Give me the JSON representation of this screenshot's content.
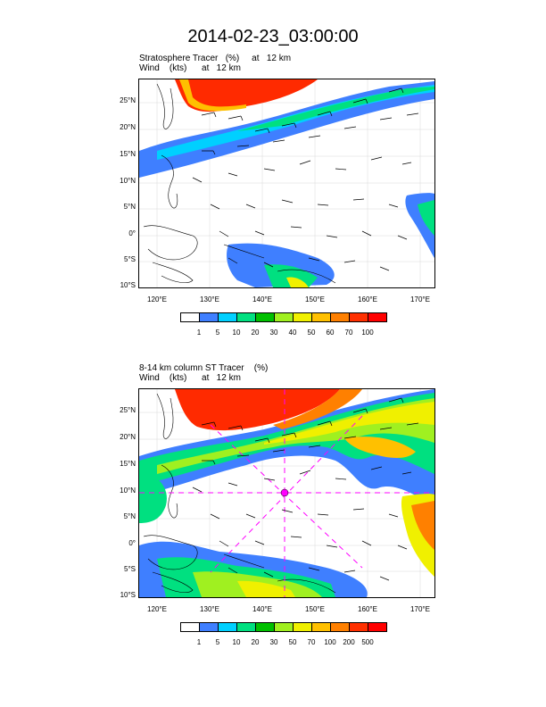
{
  "title": "2014-02-23_03:00:00",
  "panels": [
    {
      "title_line1": "Stratosphere Tracer   (%)     at   12 km",
      "title_line2": "Wind    (kts)      at   12 km",
      "lat_labels": [
        "25°N",
        "20°N",
        "15°N",
        "10°N",
        "5°N",
        "0°",
        "5°S",
        "10°S"
      ],
      "lon_labels": [
        "120°E",
        "130°E",
        "140°E",
        "150°E",
        "160°E",
        "170°E"
      ],
      "colorbar_labels": [
        "1",
        "5",
        "10",
        "20",
        "30",
        "40",
        "50",
        "60",
        "70",
        "100"
      ],
      "colorbar_colors": [
        "#ffffff",
        "#3f7fff",
        "#00d0ff",
        "#00e080",
        "#00c000",
        "#a0f020",
        "#f0f000",
        "#ffc000",
        "#ff8000",
        "#ff3000",
        "#ff0000"
      ]
    },
    {
      "title_line1": "8-14 km column ST Tracer    (%)",
      "title_line2": "Wind    (kts)      at   12 km",
      "lat_labels": [
        "25°N",
        "20°N",
        "15°N",
        "10°N",
        "5°N",
        "0°",
        "5°S",
        "10°S"
      ],
      "lon_labels": [
        "120°E",
        "130°E",
        "140°E",
        "150°E",
        "160°E",
        "170°E"
      ],
      "colorbar_labels": [
        "1",
        "5",
        "10",
        "20",
        "30",
        "50",
        "70",
        "100",
        "200",
        "500"
      ],
      "colorbar_colors": [
        "#ffffff",
        "#3f7fff",
        "#00d0ff",
        "#00e080",
        "#00c000",
        "#a0f020",
        "#f0f000",
        "#ffc000",
        "#ff8000",
        "#ff3000",
        "#ff0000"
      ]
    }
  ]
}
